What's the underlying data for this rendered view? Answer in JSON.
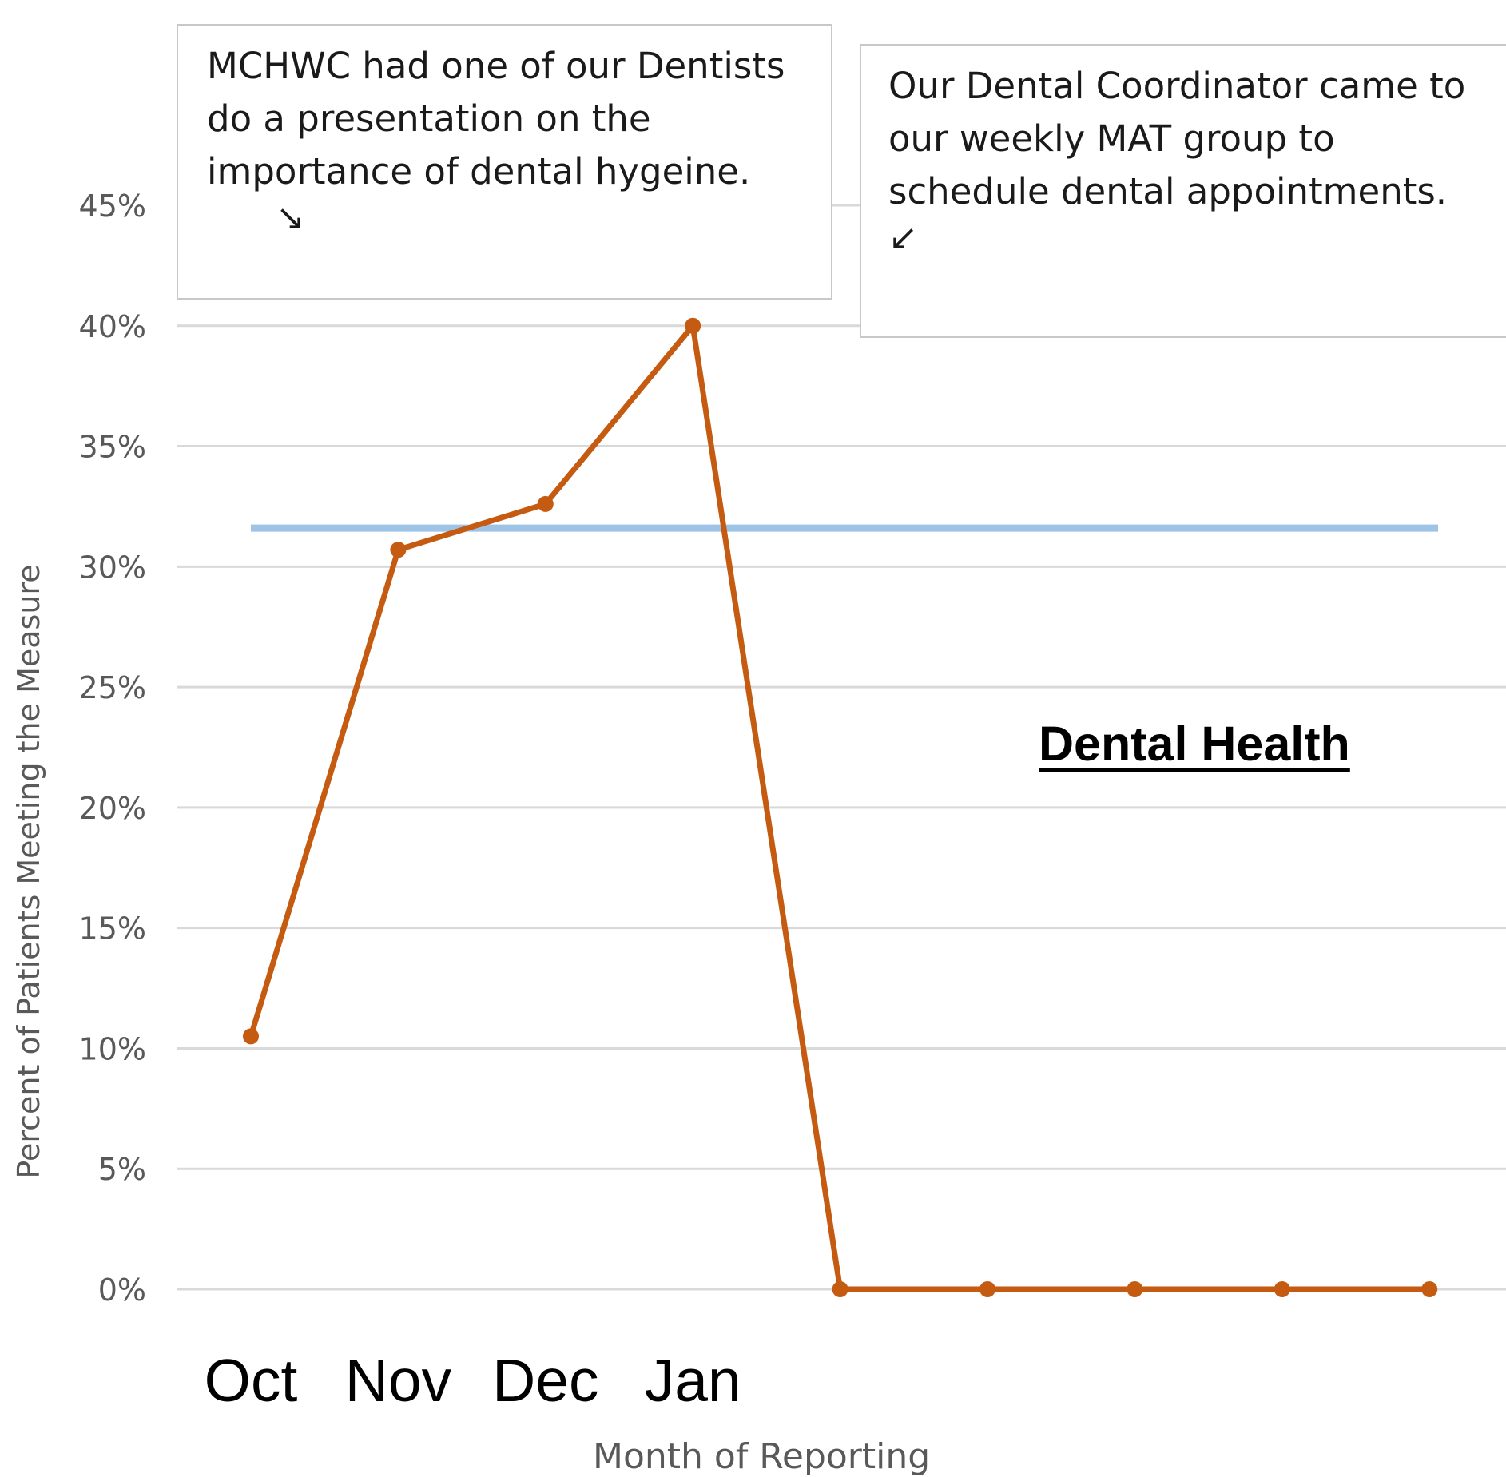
{
  "chart_data": {
    "type": "line",
    "title": "Dental Health",
    "xlabel": "Month of Reporting",
    "ylabel": "Percent of Patients Meeting the Measure",
    "ylim": [
      0,
      0.45
    ],
    "yticks": [
      "0%",
      "5%",
      "10%",
      "15%",
      "20%",
      "25%",
      "30%",
      "35%",
      "40%",
      "45%"
    ],
    "categories": [
      "Oct",
      "Nov",
      "Dec",
      "Jan",
      "",
      "",
      "",
      "",
      ""
    ],
    "series": [
      {
        "values": [
          0.105,
          0.307,
          0.326,
          0.4,
          0,
          0,
          0,
          0,
          0
        ],
        "color": "#c55a11"
      }
    ],
    "reference_line": {
      "value": 0.316,
      "color": "#9dc3e6"
    },
    "grid": true,
    "annotations": [
      {
        "text": "MCHWC had one of our Dentists do a presentation on the importance of dental hygeine.",
        "arrow": "↘"
      },
      {
        "text": "Our Dental Coordinator came to our weekly MAT group to schedule dental appointments.",
        "arrow": "↙"
      }
    ]
  }
}
